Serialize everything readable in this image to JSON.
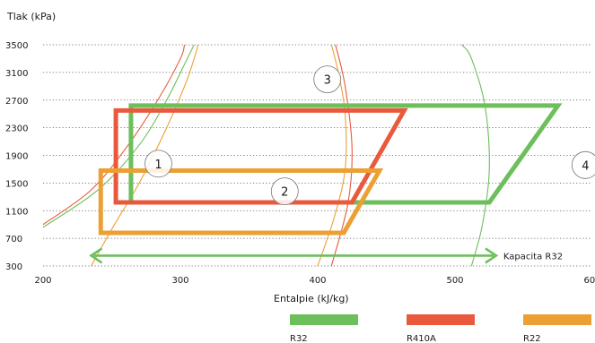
{
  "chart_data": {
    "type": "line",
    "subtype": "pressure-enthalpy diagram with refrigeration cycles",
    "title": "",
    "ylabel": "Tlak (kPa)",
    "xlabel": "Entalpie (kJ/kg)",
    "xlim": [
      200,
      600
    ],
    "ylim": [
      300,
      3500
    ],
    "x_ticks": [
      "200",
      "300",
      "400",
      "500",
      "600"
    ],
    "y_ticks": [
      "300",
      "700",
      "1100",
      "1500",
      "1900",
      "2300",
      "2700",
      "3100",
      "3500"
    ],
    "grid": "dotted horizontal",
    "legend_position": "bottom",
    "series": [
      {
        "name": "R32",
        "color": "#6dbf5c",
        "cycle": [
          [
            264,
            1220
          ],
          [
            264,
            2620
          ],
          [
            575,
            2620
          ],
          [
            525,
            1220
          ]
        ],
        "saturation_left": [
          [
            200,
            860
          ],
          [
            240,
            1400
          ],
          [
            270,
            2050
          ],
          [
            290,
            2700
          ],
          [
            305,
            3300
          ],
          [
            310,
            3500
          ]
        ],
        "saturation_right": [
          [
            512,
            300
          ],
          [
            520,
            900
          ],
          [
            525,
            1700
          ],
          [
            522,
            2600
          ],
          [
            512,
            3300
          ],
          [
            505,
            3500
          ]
        ]
      },
      {
        "name": "R410A",
        "color": "#e95a3c",
        "cycle": [
          [
            253,
            1220
          ],
          [
            253,
            2550
          ],
          [
            463,
            2550
          ],
          [
            425,
            1220
          ]
        ],
        "saturation_left": [
          [
            200,
            900
          ],
          [
            235,
            1400
          ],
          [
            262,
            2050
          ],
          [
            285,
            2750
          ],
          [
            300,
            3300
          ],
          [
            303,
            3500
          ]
        ],
        "saturation_right": [
          [
            410,
            300
          ],
          [
            422,
            1200
          ],
          [
            425,
            2000
          ],
          [
            420,
            2900
          ],
          [
            413,
            3500
          ]
        ]
      },
      {
        "name": "R22",
        "color": "#eca033",
        "cycle": [
          [
            242,
            780
          ],
          [
            242,
            1680
          ],
          [
            445,
            1680
          ],
          [
            419,
            780
          ]
        ],
        "saturation_left": [
          [
            235,
            300
          ],
          [
            252,
            900
          ],
          [
            270,
            1500
          ],
          [
            290,
            2300
          ],
          [
            305,
            3000
          ],
          [
            313,
            3500
          ]
        ],
        "saturation_right": [
          [
            400,
            300
          ],
          [
            412,
            1000
          ],
          [
            420,
            1700
          ],
          [
            420,
            2500
          ],
          [
            415,
            3100
          ],
          [
            410,
            3500
          ]
        ]
      }
    ],
    "annotations": [
      {
        "label": "1",
        "x": 284,
        "y": 1780
      },
      {
        "label": "2",
        "x": 376,
        "y": 1380
      },
      {
        "label": "3",
        "x": 407,
        "y": 3000
      },
      {
        "label": "4",
        "x": 595,
        "y": 1760
      }
    ],
    "capacity_arrow": {
      "label": "Kapacita R32",
      "from": 235,
      "to": 530,
      "y": 450,
      "color": "#6dbf5c"
    }
  }
}
